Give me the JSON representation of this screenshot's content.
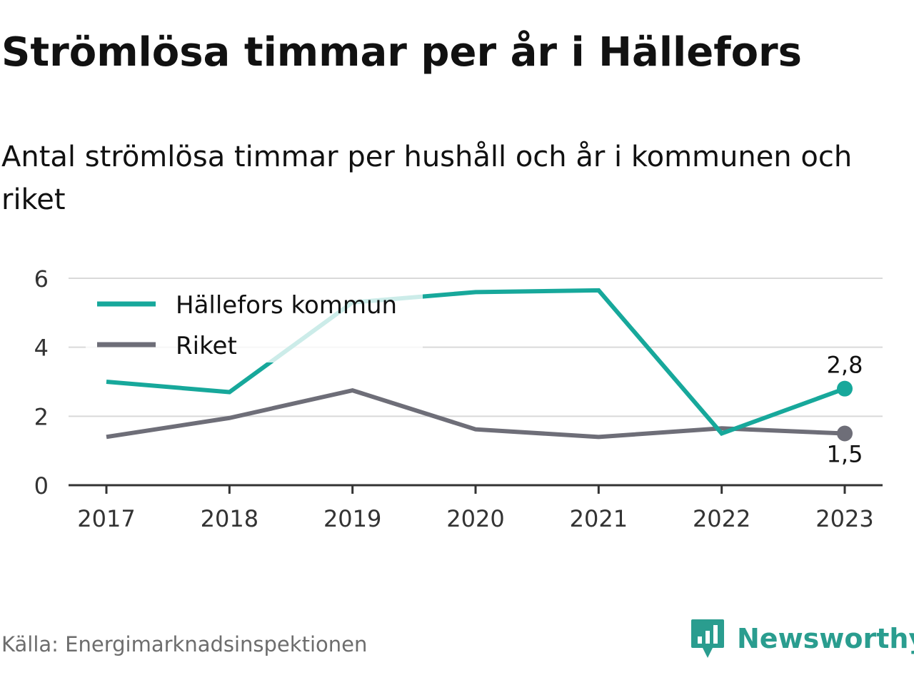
{
  "header": {
    "title": "Strömlösa timmar per år i Hällefors",
    "subtitle": "Antal strömlösa timmar per hushåll och år i kommunen och riket"
  },
  "footer": {
    "source": "Källa: Energimarknadsinspektionen",
    "brand": "Newsworthy",
    "brand_icon": "newsworthy-logo-icon"
  },
  "colors": {
    "kommun": "#17a89b",
    "riket": "#6e6e78",
    "grid": "#d9d9d9",
    "axis": "#333333",
    "brand": "#2a9d8f"
  },
  "chart_data": {
    "type": "line",
    "categories": [
      "2017",
      "2018",
      "2019",
      "2020",
      "2021",
      "2022",
      "2023"
    ],
    "ylim": [
      0,
      6
    ],
    "yticks": [
      "0",
      "2",
      "4",
      "6"
    ],
    "grid": true,
    "legend_position": "top-left",
    "series": [
      {
        "name": "Hällefors kommun",
        "values": [
          3.0,
          2.7,
          5.3,
          5.6,
          5.65,
          1.5,
          2.8
        ],
        "end_label": "2,8"
      },
      {
        "name": "Riket",
        "values": [
          1.4,
          1.95,
          2.75,
          1.62,
          1.4,
          1.65,
          1.5
        ],
        "end_label": "1,5"
      }
    ]
  }
}
